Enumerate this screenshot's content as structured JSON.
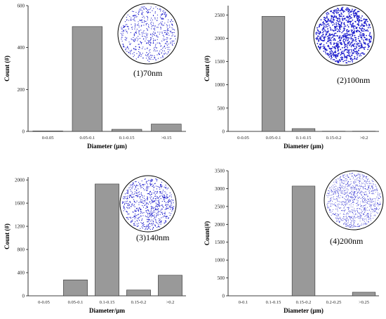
{
  "colors": {
    "bar": "#999999",
    "bar_edge": "#333333",
    "dot": "#1a1acc",
    "axis": "#000000"
  },
  "chart_data": [
    {
      "type": "bar",
      "categories": [
        "0-0.05",
        "0.05-0.1",
        "0.1-0.15",
        ">0.15"
      ],
      "values": [
        2,
        500,
        10,
        35
      ],
      "ylim": [
        0,
        600
      ],
      "yticks": [
        0,
        200,
        400,
        600
      ],
      "xlabel": "Diameter (μm)",
      "ylabel": "Count (#)",
      "annotation": "(1)70nm",
      "inset": "particle-distribution-circle",
      "inset_density": 550
    },
    {
      "type": "bar",
      "categories": [
        "0-0.05",
        "0.05-0.1",
        "0.1-0.15",
        "0.15-0.2",
        ">0.2"
      ],
      "values": [
        0,
        2470,
        60,
        5,
        5
      ],
      "ylim": [
        0,
        2700
      ],
      "yticks": [
        0,
        500,
        1000,
        1500,
        2000,
        2500
      ],
      "xlabel": "Diameter (μm)",
      "ylabel": "Count (#)",
      "annotation": "(2)100nm",
      "inset": "particle-distribution-circle",
      "inset_density": 900
    },
    {
      "type": "bar",
      "categories": [
        "0-0.05",
        "0.05-0.1",
        "0.1-0.15",
        "0.15-0.2",
        ">0.2"
      ],
      "values": [
        0,
        275,
        1930,
        100,
        355
      ],
      "ylim": [
        0,
        2050
      ],
      "yticks": [
        0,
        400,
        800,
        1200,
        1600,
        2000
      ],
      "xlabel": "Diameter/μm",
      "ylabel": "Count (#)",
      "annotation": "(3)140nm",
      "inset": "particle-distribution-circle",
      "inset_density": 700
    },
    {
      "type": "bar",
      "categories": [
        "0-0.1",
        "0.1-0.15",
        "0.15-0.2",
        "0.2-0.25",
        ">0.25"
      ],
      "values": [
        0,
        0,
        3070,
        5,
        100
      ],
      "ylim": [
        0,
        3500
      ],
      "yticks": [
        0,
        500,
        1000,
        1500,
        2000,
        2500,
        3000,
        3500
      ],
      "xlabel": "Diameter (μm)",
      "ylabel": "Count(#)",
      "annotation": "(4)200nm",
      "inset": "particle-distribution-circle",
      "inset_density": 1100
    }
  ]
}
